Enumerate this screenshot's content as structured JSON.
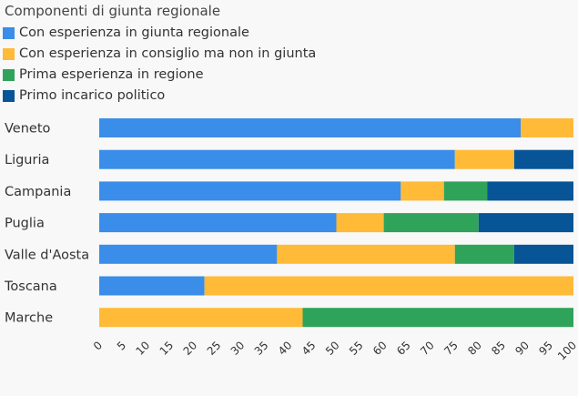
{
  "chart_data": {
    "type": "bar",
    "orientation": "horizontal",
    "stacked": true,
    "legend_title": "Componenti di giunta regionale",
    "legend_position": "top-left",
    "categories": [
      "Veneto",
      "Liguria",
      "Campania",
      "Puglia",
      "Valle d'Aosta",
      "Toscana",
      "Marche"
    ],
    "series": [
      {
        "name": "Con esperienza in giunta regionale",
        "color": "#3a8de8",
        "values": [
          88.9,
          75.0,
          63.6,
          50.0,
          37.5,
          22.2,
          0
        ]
      },
      {
        "name": "Con esperienza in consiglio ma non in giunta",
        "color": "#ffba38",
        "values": [
          11.1,
          12.5,
          9.1,
          10.0,
          37.5,
          77.8,
          42.9
        ]
      },
      {
        "name": "Prima esperienza in regione",
        "color": "#2fa35a",
        "values": [
          0,
          0,
          9.1,
          20.0,
          12.5,
          0,
          57.1
        ]
      },
      {
        "name": "Primo incarico politico",
        "color": "#075596",
        "values": [
          0,
          12.5,
          18.2,
          20.0,
          12.5,
          0,
          0
        ]
      }
    ],
    "xlim": [
      0,
      100
    ],
    "xticks": [
      "0",
      "5",
      "10",
      "15",
      "20",
      "25",
      "30",
      "35",
      "40",
      "45",
      "50",
      "55",
      "60",
      "65",
      "70",
      "75",
      "80",
      "85",
      "90",
      "95",
      "100"
    ],
    "grid": false
  }
}
